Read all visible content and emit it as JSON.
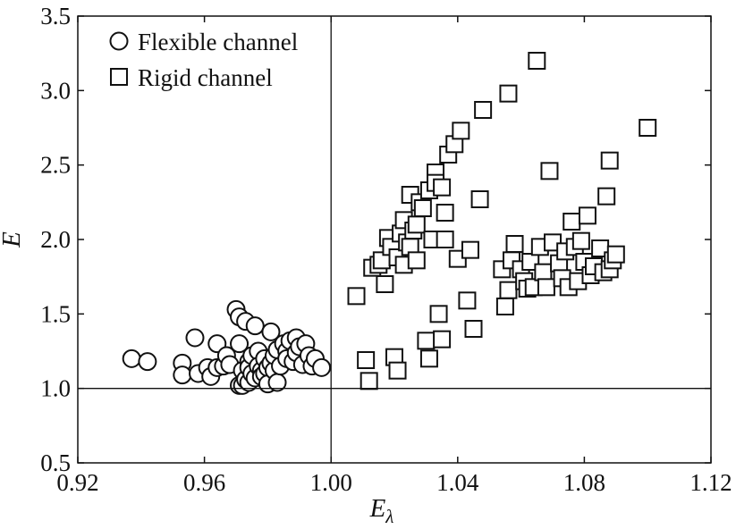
{
  "chart_data": {
    "type": "scatter",
    "xlabel": "E",
    "xlabel_sub": "λ",
    "ylabel": "E",
    "xlim": [
      0.92,
      1.12
    ],
    "ylim": [
      0.5,
      3.5
    ],
    "xticks": [
      "0.92",
      "0.96",
      "1.00",
      "1.04",
      "1.08",
      "1.12"
    ],
    "xtick_values": [
      0.92,
      0.96,
      1.0,
      1.04,
      1.08,
      1.12
    ],
    "yticks": [
      "0.5",
      "1.0",
      "1.5",
      "2.0",
      "2.5",
      "3.0",
      "3.5"
    ],
    "ytick_values": [
      0.5,
      1.0,
      1.5,
      2.0,
      2.5,
      3.0,
      3.5
    ],
    "reference_lines": {
      "x": 1.0,
      "y": 1.0
    },
    "legend_position": "top-left",
    "series": [
      {
        "name": "Flexible channel",
        "marker": "circle",
        "points": [
          [
            0.937,
            1.2
          ],
          [
            0.942,
            1.18
          ],
          [
            0.953,
            1.17
          ],
          [
            0.953,
            1.09
          ],
          [
            0.957,
            1.34
          ],
          [
            0.958,
            1.1
          ],
          [
            0.961,
            1.14
          ],
          [
            0.962,
            1.08
          ],
          [
            0.964,
            1.3
          ],
          [
            0.964,
            1.14
          ],
          [
            0.966,
            1.15
          ],
          [
            0.967,
            1.22
          ],
          [
            0.968,
            1.16
          ],
          [
            0.97,
            1.53
          ],
          [
            0.971,
            1.48
          ],
          [
            0.971,
            1.3
          ],
          [
            0.971,
            1.02
          ],
          [
            0.972,
            1.12
          ],
          [
            0.972,
            1.02
          ],
          [
            0.973,
            1.45
          ],
          [
            0.973,
            1.06
          ],
          [
            0.974,
            1.18
          ],
          [
            0.974,
            1.14
          ],
          [
            0.974,
            1.04
          ],
          [
            0.975,
            1.22
          ],
          [
            0.975,
            1.1
          ],
          [
            0.976,
            1.42
          ],
          [
            0.976,
            1.07
          ],
          [
            0.977,
            1.25
          ],
          [
            0.977,
            1.15
          ],
          [
            0.978,
            1.12
          ],
          [
            0.978,
            1.08
          ],
          [
            0.979,
            1.2
          ],
          [
            0.979,
            1.1
          ],
          [
            0.98,
            1.14
          ],
          [
            0.98,
            1.03
          ],
          [
            0.981,
            1.38
          ],
          [
            0.981,
            1.17
          ],
          [
            0.982,
            1.12
          ],
          [
            0.982,
            1.22
          ],
          [
            0.983,
            1.26
          ],
          [
            0.983,
            1.04
          ],
          [
            0.984,
            1.15
          ],
          [
            0.985,
            1.3
          ],
          [
            0.986,
            1.25
          ],
          [
            0.986,
            1.2
          ],
          [
            0.987,
            1.32
          ],
          [
            0.988,
            1.18
          ],
          [
            0.989,
            1.34
          ],
          [
            0.989,
            1.24
          ],
          [
            0.99,
            1.28
          ],
          [
            0.991,
            1.16
          ],
          [
            0.992,
            1.3
          ],
          [
            0.993,
            1.22
          ],
          [
            0.994,
            1.15
          ],
          [
            0.995,
            1.2
          ],
          [
            0.997,
            1.14
          ]
        ]
      },
      {
        "name": "Rigid channel",
        "marker": "square",
        "points": [
          [
            1.008,
            1.62
          ],
          [
            1.011,
            1.19
          ],
          [
            1.012,
            1.05
          ],
          [
            1.013,
            1.81
          ],
          [
            1.015,
            1.83
          ],
          [
            1.016,
            1.86
          ],
          [
            1.017,
            1.7
          ],
          [
            1.018,
            2.01
          ],
          [
            1.019,
            1.95
          ],
          [
            1.02,
            1.21
          ],
          [
            1.021,
            1.12
          ],
          [
            1.021,
            1.88
          ],
          [
            1.022,
            2.04
          ],
          [
            1.023,
            1.83
          ],
          [
            1.023,
            2.13
          ],
          [
            1.024,
            1.98
          ],
          [
            1.025,
            2.3
          ],
          [
            1.025,
            1.95
          ],
          [
            1.026,
            2.06
          ],
          [
            1.027,
            2.1
          ],
          [
            1.027,
            1.86
          ],
          [
            1.028,
            2.25
          ],
          [
            1.029,
            2.21
          ],
          [
            1.03,
            1.32
          ],
          [
            1.031,
            1.2
          ],
          [
            1.031,
            2.33
          ],
          [
            1.032,
            2.0
          ],
          [
            1.033,
            2.45
          ],
          [
            1.033,
            2.38
          ],
          [
            1.034,
            1.5
          ],
          [
            1.035,
            1.33
          ],
          [
            1.035,
            2.35
          ],
          [
            1.036,
            2.18
          ],
          [
            1.036,
            2.0
          ],
          [
            1.037,
            2.57
          ],
          [
            1.039,
            2.64
          ],
          [
            1.04,
            1.87
          ],
          [
            1.041,
            2.73
          ],
          [
            1.043,
            1.59
          ],
          [
            1.044,
            1.93
          ],
          [
            1.045,
            1.4
          ],
          [
            1.047,
            2.27
          ],
          [
            1.048,
            2.87
          ],
          [
            1.054,
            1.8
          ],
          [
            1.055,
            1.55
          ],
          [
            1.056,
            1.66
          ],
          [
            1.056,
            2.98
          ],
          [
            1.057,
            1.86
          ],
          [
            1.058,
            1.97
          ],
          [
            1.06,
            1.8
          ],
          [
            1.061,
            1.72
          ],
          [
            1.062,
            1.67
          ],
          [
            1.063,
            1.85
          ],
          [
            1.064,
            1.68
          ],
          [
            1.065,
            3.2
          ],
          [
            1.066,
            1.95
          ],
          [
            1.067,
            1.78
          ],
          [
            1.068,
            1.68
          ],
          [
            1.069,
            2.46
          ],
          [
            1.07,
            1.98
          ],
          [
            1.072,
            1.84
          ],
          [
            1.073,
            1.74
          ],
          [
            1.074,
            1.92
          ],
          [
            1.075,
            1.68
          ],
          [
            1.076,
            2.12
          ],
          [
            1.077,
            1.95
          ],
          [
            1.078,
            1.72
          ],
          [
            1.079,
            1.99
          ],
          [
            1.08,
            1.85
          ],
          [
            1.081,
            2.16
          ],
          [
            1.082,
            1.76
          ],
          [
            1.083,
            1.82
          ],
          [
            1.085,
            1.94
          ],
          [
            1.086,
            1.78
          ],
          [
            1.087,
            2.29
          ],
          [
            1.088,
            1.8
          ],
          [
            1.088,
            2.53
          ],
          [
            1.089,
            1.86
          ],
          [
            1.09,
            1.9
          ],
          [
            1.1,
            2.75
          ]
        ]
      }
    ]
  }
}
